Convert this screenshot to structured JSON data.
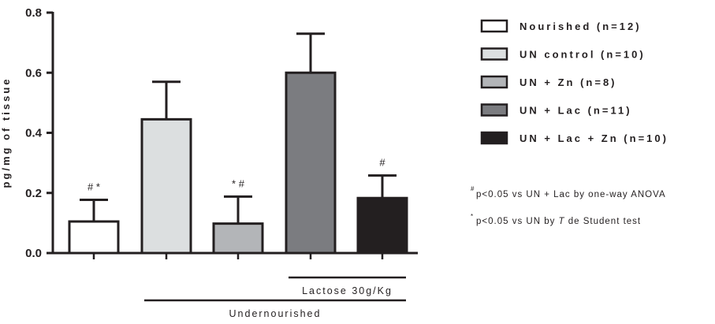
{
  "chart_data": {
    "type": "bar",
    "ylabel": "pg/mg of tissue",
    "ylim": [
      0,
      0.8
    ],
    "yticks": [
      "0.0",
      "0.2",
      "0.4",
      "0.6",
      "0.8"
    ],
    "yticks_values": [
      0,
      0.2,
      0.4,
      0.6,
      0.8
    ],
    "grid": false,
    "legend_position": "right",
    "series": [
      {
        "name": "Nourished (n=12)",
        "value": 0.105,
        "error": 0.072,
        "color": "#ffffff",
        "marks": "#  *"
      },
      {
        "name": "UN control (n=10)",
        "value": 0.445,
        "error": 0.125,
        "color": "#dcdfe0",
        "marks": ""
      },
      {
        "name": "UN + Zn (n=8)",
        "value": 0.098,
        "error": 0.09,
        "color": "#b3b5b8",
        "marks": "* #"
      },
      {
        "name": "UN + Lac (n=11)",
        "value": 0.6,
        "error": 0.13,
        "color": "#7b7c80",
        "marks": ""
      },
      {
        "name": "UN + Lac + Zn (n=10)",
        "value": 0.183,
        "error": 0.075,
        "color": "#231f20",
        "marks": "#"
      }
    ],
    "brackets": [
      {
        "label": "Lactose 30g/Kg",
        "from_index": 3,
        "to_index": 4
      },
      {
        "label": "Undernourished",
        "from_index": 1,
        "to_index": 4
      }
    ],
    "notes": [
      {
        "symbol": "#",
        "text": "p<0.05 vs UN + Lac by one-way ANOVA"
      },
      {
        "symbol": "*",
        "text_before": "p<0.05 vs UN by ",
        "text_italic": "T",
        "text_after": " de Student test"
      }
    ]
  }
}
